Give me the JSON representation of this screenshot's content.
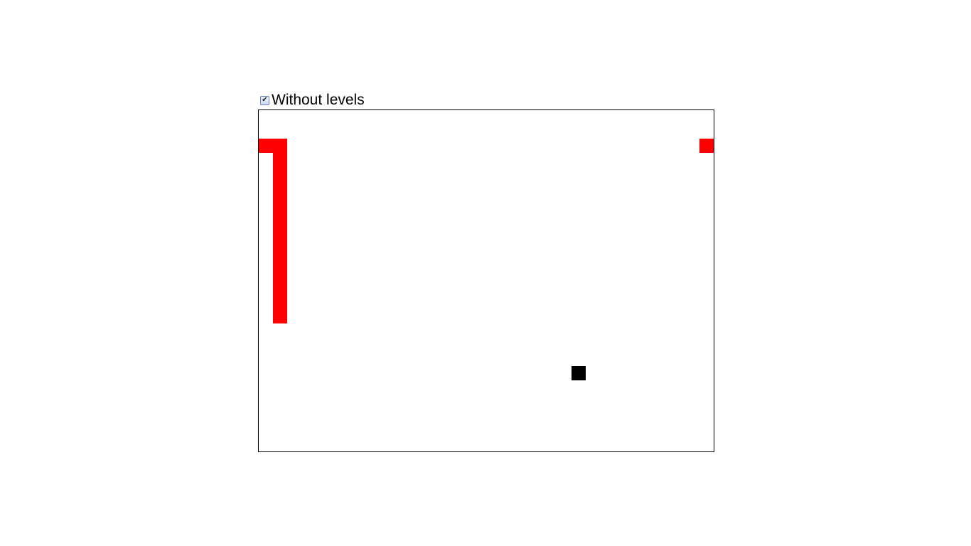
{
  "toggle": {
    "label": "Without levels",
    "checked": true,
    "check_glyph": "✔"
  },
  "game": {
    "grid_cols": 32,
    "grid_rows": 24,
    "snake_color": "#ff0000",
    "food_color": "#000000",
    "snake_cells": [
      [
        0,
        2
      ],
      [
        1,
        2
      ],
      [
        1,
        3
      ],
      [
        1,
        4
      ],
      [
        1,
        5
      ],
      [
        1,
        6
      ],
      [
        1,
        7
      ],
      [
        1,
        8
      ],
      [
        1,
        9
      ],
      [
        1,
        10
      ],
      [
        1,
        11
      ],
      [
        1,
        12
      ],
      [
        1,
        13
      ],
      [
        1,
        14
      ],
      [
        31,
        2
      ]
    ],
    "food_cell": [
      22,
      18
    ]
  }
}
